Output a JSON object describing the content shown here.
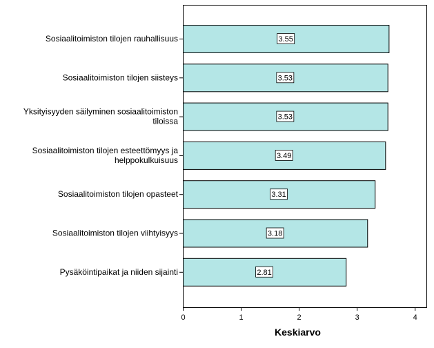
{
  "chart_data": {
    "type": "bar",
    "orientation": "horizontal",
    "categories": [
      "Sosiaalitoimiston tilojen rauhallisuus",
      "Sosiaalitoimiston tilojen siisteys",
      "Yksityisyyden säilyminen sosiaalitoimiston tiloissa",
      "Sosiaalitoimiston tilojen esteettömyys ja helppokulkuisuus",
      "Sosiaalitoimiston tilojen opasteet",
      "Sosiaalitoimiston tilojen viihtyisyys",
      "Pysäköintipaikat ja niiden sijainti"
    ],
    "category_lines": [
      [
        "Sosiaalitoimiston tilojen rauhallisuus"
      ],
      [
        "Sosiaalitoimiston tilojen siisteys"
      ],
      [
        "Yksityisyyden säilyminen sosiaalitoimiston",
        "tiloissa"
      ],
      [
        "Sosiaalitoimiston tilojen esteettömyys ja",
        "helppokulkuisuus"
      ],
      [
        "Sosiaalitoimiston tilojen opasteet"
      ],
      [
        "Sosiaalitoimiston tilojen viihtyisyys"
      ],
      [
        "Pysäköintipaikat ja niiden sijainti"
      ]
    ],
    "values": [
      3.55,
      3.53,
      3.53,
      3.49,
      3.31,
      3.18,
      2.81
    ],
    "data_labels": [
      "3.55",
      "3.53",
      "3.53",
      "3.49",
      "3.31",
      "3.18",
      "2.81"
    ],
    "xlabel": "Keskiarvo",
    "xlim": [
      0,
      4.2
    ],
    "xticks": [
      0,
      1,
      2,
      3,
      4
    ],
    "grid": false,
    "legend": "none",
    "colors": {
      "bar_fill": "#b4e6e6",
      "bar_stroke": "#000000",
      "axis": "#000000"
    }
  }
}
